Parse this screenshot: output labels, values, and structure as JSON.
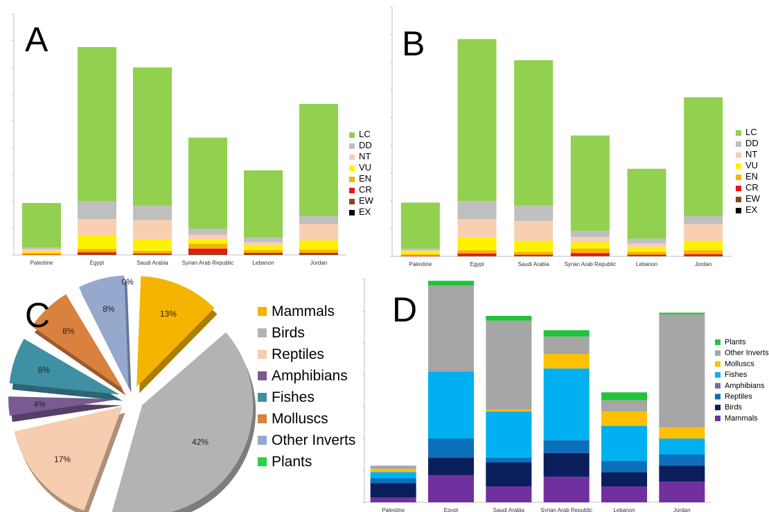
{
  "panels": {
    "a": "A",
    "b": "B",
    "c": "C",
    "d": "D"
  },
  "chart_data": [
    {
      "id": "A",
      "type": "bar",
      "stacked": true,
      "ylim": [
        0,
        450
      ],
      "categories": [
        "Palestine",
        "Egypt",
        "Saudi Arabia",
        "Syrian Arab Republic",
        "Lebanon",
        "Jordan"
      ],
      "series": [
        {
          "name": "EX",
          "color": "#000000",
          "values": [
            0,
            0,
            0,
            0,
            0,
            0
          ]
        },
        {
          "name": "EW",
          "color": "#8B4513",
          "values": [
            0,
            2,
            1,
            4,
            2,
            2
          ]
        },
        {
          "name": "CR",
          "color": "#E8141C",
          "values": [
            1,
            3,
            2,
            8,
            2,
            2
          ]
        },
        {
          "name": "EN",
          "color": "#F4B400",
          "values": [
            3,
            6,
            5,
            9,
            5,
            6
          ]
        },
        {
          "name": "VU",
          "color": "#FFF200",
          "values": [
            3,
            25,
            22,
            8,
            8,
            17
          ]
        },
        {
          "name": "NT",
          "color": "#F9CFB2",
          "values": [
            4,
            31,
            35,
            9,
            7,
            31
          ]
        },
        {
          "name": "DD",
          "color": "#BFBFBF",
          "values": [
            3,
            33,
            27,
            11,
            9,
            15
          ]
        },
        {
          "name": "LC",
          "color": "#92D050",
          "values": [
            83,
            288,
            258,
            170,
            125,
            209
          ]
        }
      ],
      "legend": [
        "LC",
        "DD",
        "NT",
        "VU",
        "EN",
        "CR",
        "EW",
        "EX"
      ]
    },
    {
      "id": "B",
      "type": "bar",
      "stacked": true,
      "ylim": [
        0,
        450
      ],
      "categories": [
        "Palestine",
        "Egypt",
        "Saudi Arabia",
        "Syrian Arab Republic",
        "Lebanon",
        "Jordan"
      ],
      "series": [
        {
          "name": "EX",
          "color": "#000000",
          "values": [
            0,
            0,
            0,
            0,
            0,
            0
          ]
        },
        {
          "name": "EW",
          "color": "#8B4513",
          "values": [
            0,
            2,
            1,
            1,
            1,
            2
          ]
        },
        {
          "name": "CR",
          "color": "#E8141C",
          "values": [
            1,
            3,
            2,
            5,
            2,
            2
          ]
        },
        {
          "name": "EN",
          "color": "#F4B400",
          "values": [
            3,
            6,
            5,
            8,
            5,
            7
          ]
        },
        {
          "name": "VU",
          "color": "#FFF200",
          "values": [
            4,
            23,
            20,
            11,
            8,
            17
          ]
        },
        {
          "name": "NT",
          "color": "#F9CFB2",
          "values": [
            3,
            33,
            36,
            10,
            7,
            30
          ]
        },
        {
          "name": "DD",
          "color": "#BFBFBF",
          "values": [
            3,
            33,
            28,
            11,
            9,
            15
          ]
        },
        {
          "name": "LC",
          "color": "#92D050",
          "values": [
            83,
            292,
            262,
            172,
            126,
            214
          ]
        }
      ],
      "legend": [
        "LC",
        "DD",
        "NT",
        "VU",
        "EN",
        "CR",
        "EW",
        "EX"
      ]
    },
    {
      "id": "C",
      "type": "pie",
      "slices": [
        {
          "name": "Mammals",
          "value": 13,
          "label": "13%",
          "color": "#F4B400"
        },
        {
          "name": "Birds",
          "value": 42,
          "label": "42%",
          "color": "#B3B3B3"
        },
        {
          "name": "Reptiles",
          "value": 17,
          "label": "17%",
          "color": "#F6CDAE"
        },
        {
          "name": "Amphibians",
          "value": 4,
          "label": "4%",
          "color": "#7A5A92"
        },
        {
          "name": "Fishes",
          "value": 8,
          "label": "8%",
          "color": "#3F90A3"
        },
        {
          "name": "Molluscs",
          "value": 8,
          "label": "8%",
          "color": "#D9823F"
        },
        {
          "name": "Other Inverts",
          "value": 8,
          "label": "8%",
          "color": "#95A9CF"
        },
        {
          "name": "Plants",
          "value": 0,
          "label": "0%",
          "color": "#2ED04A"
        }
      ]
    },
    {
      "id": "D",
      "type": "bar",
      "stacked": true,
      "ylim": [
        0,
        700
      ],
      "categories": [
        "Palestine",
        "Egypt",
        "Saudi Arabia",
        "Syrian Arab Republic",
        "Lebanon",
        "Jordan"
      ],
      "series": [
        {
          "name": "Mammals",
          "color": "#7030A0",
          "values": [
            15,
            85,
            50,
            80,
            50,
            65
          ]
        },
        {
          "name": "Birds",
          "color": "#0A1F5C",
          "values": [
            45,
            55,
            75,
            75,
            45,
            50
          ]
        },
        {
          "name": "Reptiles",
          "color": "#0B6FBA",
          "values": [
            15,
            60,
            15,
            40,
            35,
            35
          ]
        },
        {
          "name": "Fishes",
          "color": "#00B0F0",
          "values": [
            20,
            210,
            145,
            225,
            110,
            50
          ]
        },
        {
          "name": "Molluscs",
          "color": "#FFC000",
          "values": [
            10,
            0,
            5,
            45,
            45,
            35
          ]
        },
        {
          "name": "Other Inverts",
          "color": "#A6A6A6",
          "values": [
            10,
            270,
            280,
            55,
            35,
            355
          ]
        },
        {
          "name": "Plants",
          "color": "#21C33A",
          "values": [
            0,
            15,
            15,
            20,
            25,
            5
          ]
        }
      ],
      "legend": [
        "Plants",
        "Other Inverts",
        "Molluscs",
        "Fishes",
        "Amphibians",
        "Reptiles",
        "Birds",
        "Mammals"
      ],
      "legend_colors": {
        "Plants": "#21C33A",
        "Other Inverts": "#A6A6A6",
        "Molluscs": "#FFC000",
        "Fishes": "#00B0F0",
        "Amphibians": "#7F6A9F",
        "Reptiles": "#0B6FBA",
        "Birds": "#0A1F5C",
        "Mammals": "#7030A0"
      }
    }
  ]
}
